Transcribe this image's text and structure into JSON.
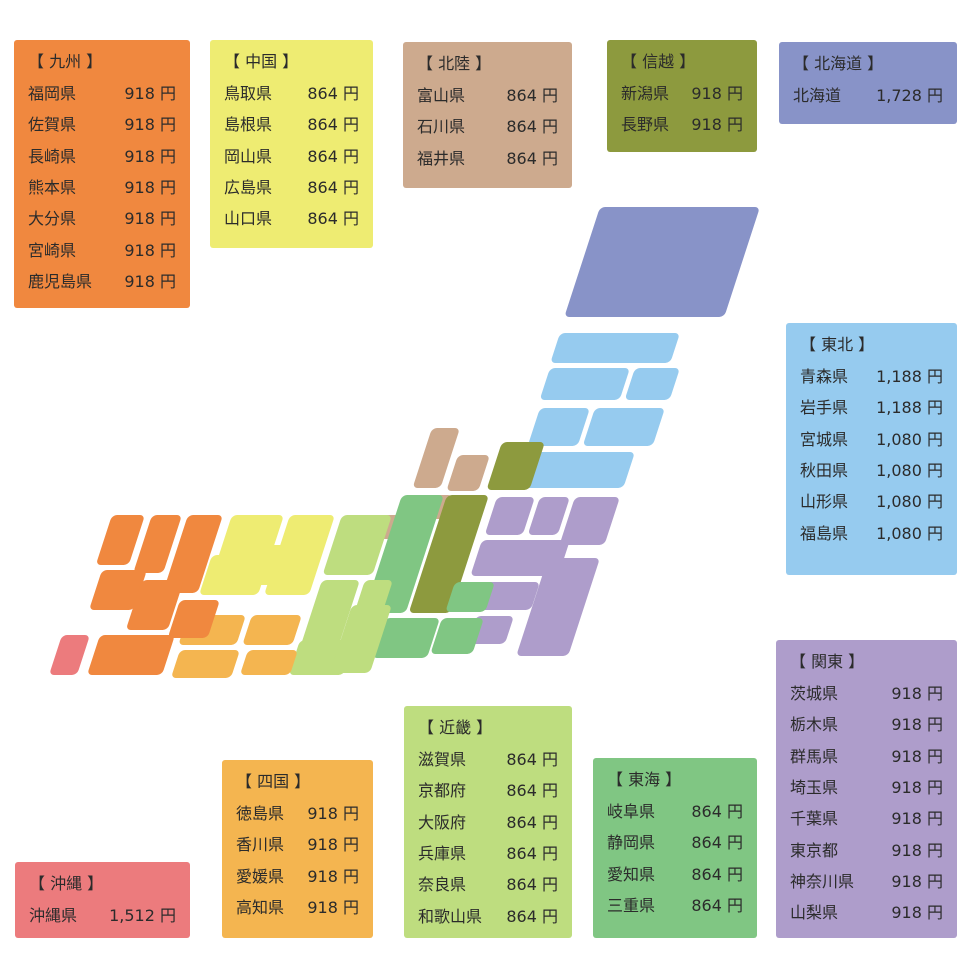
{
  "regions": [
    {
      "title": "【 九州 】",
      "color": "#f0883f",
      "items": [
        {
          "name": "福岡県",
          "price": "918 円"
        },
        {
          "name": "佐賀県",
          "price": "918 円"
        },
        {
          "name": "長崎県",
          "price": "918 円"
        },
        {
          "name": "熊本県",
          "price": "918 円"
        },
        {
          "name": "大分県",
          "price": "918 円"
        },
        {
          "name": "宮崎県",
          "price": "918 円"
        },
        {
          "name": "鹿児島県",
          "price": "918 円"
        }
      ]
    },
    {
      "title": "【 中国 】",
      "color": "#eeec72",
      "items": [
        {
          "name": "鳥取県",
          "price": "864 円"
        },
        {
          "name": "島根県",
          "price": "864 円"
        },
        {
          "name": "岡山県",
          "price": "864 円"
        },
        {
          "name": "広島県",
          "price": "864 円"
        },
        {
          "name": "山口県",
          "price": "864 円"
        }
      ]
    },
    {
      "title": "【 北陸 】",
      "color": "#cdaa8e",
      "items": [
        {
          "name": "富山県",
          "price": "864 円"
        },
        {
          "name": "石川県",
          "price": "864 円"
        },
        {
          "name": "福井県",
          "price": "864 円"
        }
      ]
    },
    {
      "title": "【 信越 】",
      "color": "#8d9a3e",
      "items": [
        {
          "name": "新潟県",
          "price": "918 円"
        },
        {
          "name": "長野県",
          "price": "918 円"
        }
      ]
    },
    {
      "title": "【 北海道 】",
      "color": "#8893c8",
      "items": [
        {
          "name": "北海道",
          "price": "1,728 円"
        }
      ]
    },
    {
      "title": "【 東北 】",
      "color": "#96cbef",
      "items": [
        {
          "name": "青森県",
          "price": "1,188 円"
        },
        {
          "name": "岩手県",
          "price": "1,188 円"
        },
        {
          "name": "宮城県",
          "price": "1,080 円"
        },
        {
          "name": "秋田県",
          "price": "1,080 円"
        },
        {
          "name": "山形県",
          "price": "1,080 円"
        },
        {
          "name": "福島県",
          "price": "1,080 円"
        }
      ]
    },
    {
      "title": "【 関東 】",
      "color": "#ae9dcb",
      "items": [
        {
          "name": "茨城県",
          "price": "918 円"
        },
        {
          "name": "栃木県",
          "price": "918 円"
        },
        {
          "name": "群馬県",
          "price": "918 円"
        },
        {
          "name": "埼玉県",
          "price": "918 円"
        },
        {
          "name": "千葉県",
          "price": "918 円"
        },
        {
          "name": "東京都",
          "price": "918 円"
        },
        {
          "name": "神奈川県",
          "price": "918 円"
        },
        {
          "name": "山梨県",
          "price": "918 円"
        }
      ]
    },
    {
      "title": "【 東海 】",
      "color": "#80c683",
      "items": [
        {
          "name": "岐阜県",
          "price": "864 円"
        },
        {
          "name": "静岡県",
          "price": "864 円"
        },
        {
          "name": "愛知県",
          "price": "864 円"
        },
        {
          "name": "三重県",
          "price": "864 円"
        }
      ]
    },
    {
      "title": "【 近畿 】",
      "color": "#bedd7f",
      "items": [
        {
          "name": "滋賀県",
          "price": "864 円"
        },
        {
          "name": "京都府",
          "price": "864 円"
        },
        {
          "name": "大阪府",
          "price": "864 円"
        },
        {
          "name": "兵庫県",
          "price": "864 円"
        },
        {
          "name": "奈良県",
          "price": "864 円"
        },
        {
          "name": "和歌山県",
          "price": "864 円"
        }
      ]
    },
    {
      "title": "【 四国 】",
      "color": "#f4b550",
      "items": [
        {
          "name": "徳島県",
          "price": "918 円"
        },
        {
          "name": "香川県",
          "price": "918 円"
        },
        {
          "name": "愛媛県",
          "price": "918 円"
        },
        {
          "name": "高知県",
          "price": "918 円"
        }
      ]
    },
    {
      "title": "【 沖縄 】",
      "color": "#ec7b7d",
      "items": [
        {
          "name": "沖縄県",
          "price": "1,512 円"
        }
      ]
    }
  ]
}
